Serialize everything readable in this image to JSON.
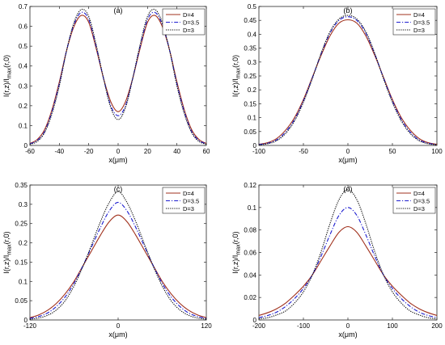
{
  "figure": {
    "colors": {
      "D=4": "#a0301c",
      "D=3.5": "#1c1ccf",
      "D=3": "#111111"
    },
    "line_styles": {
      "D=4": "solid",
      "D=3.5": "dash-dot",
      "D=3": "dotted"
    },
    "legend_placement": "top-right"
  },
  "chart_data": [
    {
      "type": "line",
      "panel_label": "(a)",
      "title": "",
      "xlabel": "x(μm)",
      "ylabel": "I(r,z)/I_max(r,0)",
      "xlim": [
        -60,
        60
      ],
      "ylim": [
        0,
        0.7
      ],
      "xticks": [
        "-60",
        "-40",
        "-20",
        "0",
        "20",
        "40",
        "60"
      ],
      "yticks": [
        "0",
        "0.1",
        "0.2",
        "0.3",
        "0.4",
        "0.5",
        "0.6",
        "0.7"
      ],
      "grid": false,
      "legend": "top-right",
      "x": [
        -60,
        -55,
        -50,
        -45,
        -40,
        -35,
        -30,
        -25,
        -20,
        -15,
        -10,
        -5,
        0,
        5,
        10,
        15,
        20,
        25,
        30,
        35,
        40,
        45,
        50,
        55,
        60
      ],
      "series": [
        {
          "name": "D=4",
          "values": [
            0.01,
            0.03,
            0.08,
            0.18,
            0.32,
            0.48,
            0.6,
            0.655,
            0.62,
            0.49,
            0.34,
            0.22,
            0.17,
            0.22,
            0.34,
            0.49,
            0.62,
            0.655,
            0.6,
            0.48,
            0.32,
            0.18,
            0.08,
            0.03,
            0.01
          ]
        },
        {
          "name": "D=3.5",
          "values": [
            0.008,
            0.025,
            0.07,
            0.17,
            0.31,
            0.48,
            0.61,
            0.67,
            0.635,
            0.5,
            0.34,
            0.2,
            0.15,
            0.2,
            0.34,
            0.5,
            0.635,
            0.67,
            0.61,
            0.48,
            0.31,
            0.17,
            0.07,
            0.025,
            0.008
          ]
        },
        {
          "name": "D=3",
          "values": [
            0.006,
            0.02,
            0.065,
            0.16,
            0.3,
            0.48,
            0.62,
            0.685,
            0.65,
            0.51,
            0.34,
            0.19,
            0.13,
            0.19,
            0.34,
            0.51,
            0.65,
            0.685,
            0.62,
            0.48,
            0.3,
            0.16,
            0.065,
            0.02,
            0.006
          ]
        }
      ]
    },
    {
      "type": "line",
      "panel_label": "(b)",
      "title": "",
      "xlabel": "x(μm)",
      "ylabel": "I(r,z)/I_max(r,0)",
      "xlim": [
        -100,
        100
      ],
      "ylim": [
        0,
        0.5
      ],
      "xticks": [
        "-100",
        "-50",
        "0",
        "50",
        "100"
      ],
      "yticks": [
        "0",
        "0.05",
        "0.1",
        "0.15",
        "0.2",
        "0.25",
        "0.3",
        "0.35",
        "0.4",
        "0.45",
        "0.5"
      ],
      "grid": false,
      "legend": "top-right",
      "x": [
        -100,
        -90,
        -80,
        -70,
        -60,
        -50,
        -40,
        -30,
        -20,
        -10,
        0,
        10,
        20,
        30,
        40,
        50,
        60,
        70,
        80,
        90,
        100
      ],
      "series": [
        {
          "name": "D=4",
          "values": [
            0.004,
            0.01,
            0.025,
            0.055,
            0.1,
            0.165,
            0.245,
            0.325,
            0.395,
            0.44,
            0.452,
            0.44,
            0.395,
            0.325,
            0.245,
            0.165,
            0.1,
            0.055,
            0.025,
            0.01,
            0.004
          ]
        },
        {
          "name": "D=3.5",
          "values": [
            0.003,
            0.008,
            0.02,
            0.048,
            0.093,
            0.16,
            0.243,
            0.33,
            0.405,
            0.45,
            0.463,
            0.45,
            0.405,
            0.33,
            0.243,
            0.16,
            0.093,
            0.048,
            0.02,
            0.008,
            0.003
          ]
        },
        {
          "name": "D=3",
          "values": [
            0.002,
            0.006,
            0.017,
            0.043,
            0.088,
            0.155,
            0.24,
            0.333,
            0.41,
            0.455,
            0.468,
            0.455,
            0.41,
            0.333,
            0.24,
            0.155,
            0.088,
            0.043,
            0.017,
            0.006,
            0.002
          ]
        }
      ]
    },
    {
      "type": "line",
      "panel_label": "(c)",
      "title": "",
      "xlabel": "x(μm)",
      "ylabel": "I(r,z)/I_max(r,0)",
      "xlim": [
        -120,
        120
      ],
      "ylim": [
        0,
        0.35
      ],
      "xticks": [
        "-120",
        "0",
        "120"
      ],
      "yticks": [
        "0",
        "0.05",
        "0.1",
        "0.15",
        "0.2",
        "0.25",
        "0.3",
        "0.35"
      ],
      "grid": false,
      "legend": "top-right",
      "x": [
        -120,
        -108,
        -96,
        -84,
        -72,
        -60,
        -48,
        -36,
        -24,
        -12,
        0,
        12,
        24,
        36,
        48,
        60,
        72,
        84,
        96,
        108,
        120
      ],
      "series": [
        {
          "name": "D=4",
          "values": [
            0.006,
            0.013,
            0.025,
            0.043,
            0.068,
            0.1,
            0.14,
            0.18,
            0.22,
            0.255,
            0.272,
            0.255,
            0.22,
            0.18,
            0.14,
            0.1,
            0.068,
            0.043,
            0.025,
            0.013,
            0.006
          ]
        },
        {
          "name": "D=3.5",
          "values": [
            0.004,
            0.009,
            0.018,
            0.035,
            0.06,
            0.095,
            0.14,
            0.19,
            0.24,
            0.283,
            0.305,
            0.283,
            0.24,
            0.19,
            0.14,
            0.095,
            0.06,
            0.035,
            0.018,
            0.009,
            0.004
          ]
        },
        {
          "name": "D=3",
          "values": [
            0.002,
            0.005,
            0.012,
            0.026,
            0.05,
            0.088,
            0.138,
            0.196,
            0.255,
            0.305,
            0.333,
            0.305,
            0.255,
            0.196,
            0.138,
            0.088,
            0.05,
            0.026,
            0.012,
            0.005,
            0.002
          ]
        }
      ]
    },
    {
      "type": "line",
      "panel_label": "(d)",
      "title": "",
      "xlabel": "x(μm)",
      "ylabel": "I(r,z)/I_max(r,0)",
      "xlim": [
        -200,
        200
      ],
      "ylim": [
        0,
        0.12
      ],
      "xticks": [
        "-200",
        "-100",
        "0",
        "100",
        "200"
      ],
      "yticks": [
        "0",
        "0.02",
        "0.04",
        "0.06",
        "0.08",
        "0.1",
        "0.12"
      ],
      "grid": false,
      "legend": "top-right",
      "x": [
        -200,
        -180,
        -160,
        -140,
        -120,
        -100,
        -80,
        -60,
        -40,
        -20,
        0,
        20,
        40,
        60,
        80,
        100,
        120,
        140,
        160,
        180,
        200
      ],
      "series": [
        {
          "name": "D=4",
          "values": [
            0.004,
            0.0065,
            0.01,
            0.015,
            0.022,
            0.03,
            0.04,
            0.053,
            0.066,
            0.078,
            0.083,
            0.078,
            0.066,
            0.053,
            0.04,
            0.03,
            0.022,
            0.015,
            0.01,
            0.0065,
            0.004
          ]
        },
        {
          "name": "D=3.5",
          "values": [
            0.002,
            0.004,
            0.007,
            0.012,
            0.019,
            0.028,
            0.04,
            0.057,
            0.076,
            0.093,
            0.1,
            0.093,
            0.076,
            0.057,
            0.04,
            0.028,
            0.019,
            0.012,
            0.007,
            0.004,
            0.002
          ]
        },
        {
          "name": "D=3",
          "values": [
            0.001,
            0.002,
            0.0045,
            0.008,
            0.015,
            0.025,
            0.04,
            0.061,
            0.086,
            0.107,
            0.116,
            0.107,
            0.086,
            0.061,
            0.04,
            0.025,
            0.015,
            0.008,
            0.0045,
            0.002,
            0.001
          ]
        }
      ]
    }
  ]
}
